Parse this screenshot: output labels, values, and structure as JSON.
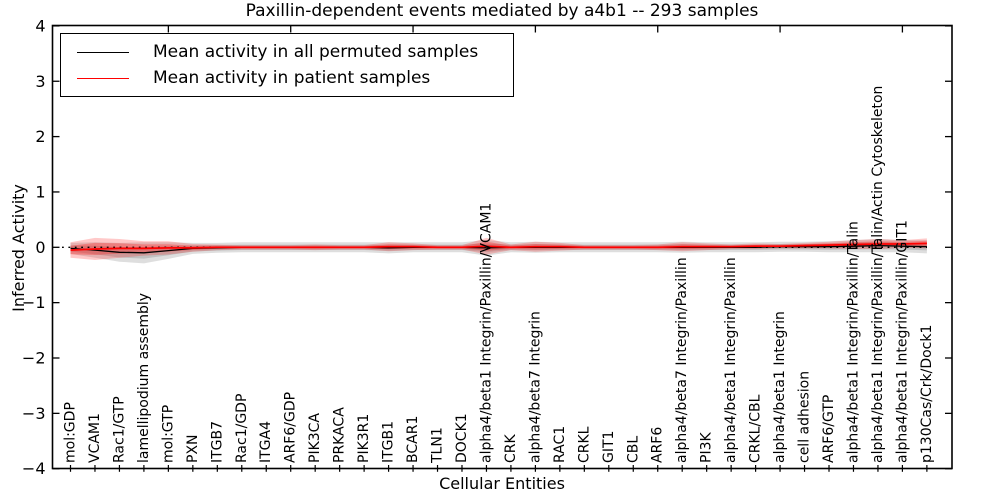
{
  "chart_data": {
    "type": "line",
    "title": "Paxillin-dependent events mediated by a4b1 -- 293 samples",
    "xlabel": "Cellular Entities",
    "ylabel": "Inferred Activity",
    "ylim": [
      -4,
      4
    ],
    "yticks": [
      -4,
      -3,
      -2,
      -1,
      0,
      1,
      2,
      3,
      4
    ],
    "xticks_top_indices": [
      4,
      9,
      14,
      19,
      24,
      29,
      34
    ],
    "grid": false,
    "legend_position": "upper left",
    "categories": [
      "mol:GDP",
      "VCAM1",
      "Rac1/GTP",
      "lamellipodium assembly",
      "mol:GTP",
      "PXN",
      "ITGB7",
      "Rac1/GDP",
      "ITGA4",
      "ARF6/GDP",
      "PIK3CA",
      "PRKACA",
      "PIK3R1",
      "ITGB1",
      "BCAR1",
      "TLN1",
      "DOCK1",
      "alpha4/beta1 Integrin/Paxillin/VCAM1",
      "CRK",
      "alpha4/beta7 Integrin",
      "RAC1",
      "CRKL",
      "GIT1",
      "CBL",
      "ARF6",
      "alpha4/beta7 Integrin/Paxillin",
      "PI3K",
      "alpha4/beta1 Integrin/Paxillin",
      "CRKL/CBL",
      "alpha4/beta1 Integrin",
      "cell adhesion",
      "ARF6/GTP",
      "alpha4/beta1 Integrin/Paxillin/Talin",
      "alpha4/beta1 Integrin/Paxillin/Talin/Actin Cytoskeleton",
      "alpha4/beta1 Integrin/Paxillin/GIT1",
      "p130Cas/Crk/Dock1"
    ],
    "zero_reference_line": {
      "y": 0,
      "style": "dotted",
      "color": "#000000"
    },
    "series": [
      {
        "name": "Mean activity in all permuted samples",
        "color": "#000000",
        "linestyle": "solid",
        "band": true,
        "mean": [
          -0.02,
          -0.05,
          -0.09,
          -0.1,
          -0.06,
          -0.02,
          -0.01,
          0,
          0,
          0,
          0,
          0,
          0,
          -0.01,
          0,
          0,
          0,
          -0.01,
          0,
          0,
          0,
          0,
          0,
          0,
          0,
          0,
          0,
          0,
          0,
          0.01,
          0.01,
          0.01,
          0.02,
          0.03,
          0.02,
          0.01
        ],
        "std": [
          0.1,
          0.14,
          0.17,
          0.19,
          0.15,
          0.1,
          0.09,
          0.09,
          0.09,
          0.09,
          0.09,
          0.09,
          0.09,
          0.1,
          0.09,
          0.09,
          0.09,
          0.14,
          0.09,
          0.1,
          0.09,
          0.09,
          0.09,
          0.09,
          0.09,
          0.1,
          0.09,
          0.09,
          0.09,
          0.09,
          0.09,
          0.1,
          0.11,
          0.12,
          0.11,
          0.12
        ]
      },
      {
        "name": "Mean activity in patient samples",
        "color": "#ff0000",
        "linestyle": "solid",
        "band": true,
        "mean": [
          -0.05,
          -0.03,
          -0.02,
          -0.02,
          -0.01,
          -0.01,
          0,
          0,
          0,
          0,
          0,
          0,
          0,
          0.01,
          0.01,
          0,
          0,
          0.02,
          0,
          0.01,
          0.01,
          0,
          0,
          0,
          0,
          0.01,
          0.01,
          0.01,
          0.02,
          0.02,
          0.03,
          0.04,
          0.05,
          0.06,
          0.06,
          0.07
        ],
        "std": [
          0.14,
          0.2,
          0.17,
          0.13,
          0.12,
          0.07,
          0.05,
          0.04,
          0.04,
          0.04,
          0.05,
          0.04,
          0.04,
          0.08,
          0.06,
          0.04,
          0.04,
          0.15,
          0.05,
          0.09,
          0.07,
          0.04,
          0.04,
          0.04,
          0.05,
          0.08,
          0.06,
          0.04,
          0.05,
          0.04,
          0.05,
          0.06,
          0.08,
          0.09,
          0.07,
          0.09
        ]
      }
    ]
  }
}
